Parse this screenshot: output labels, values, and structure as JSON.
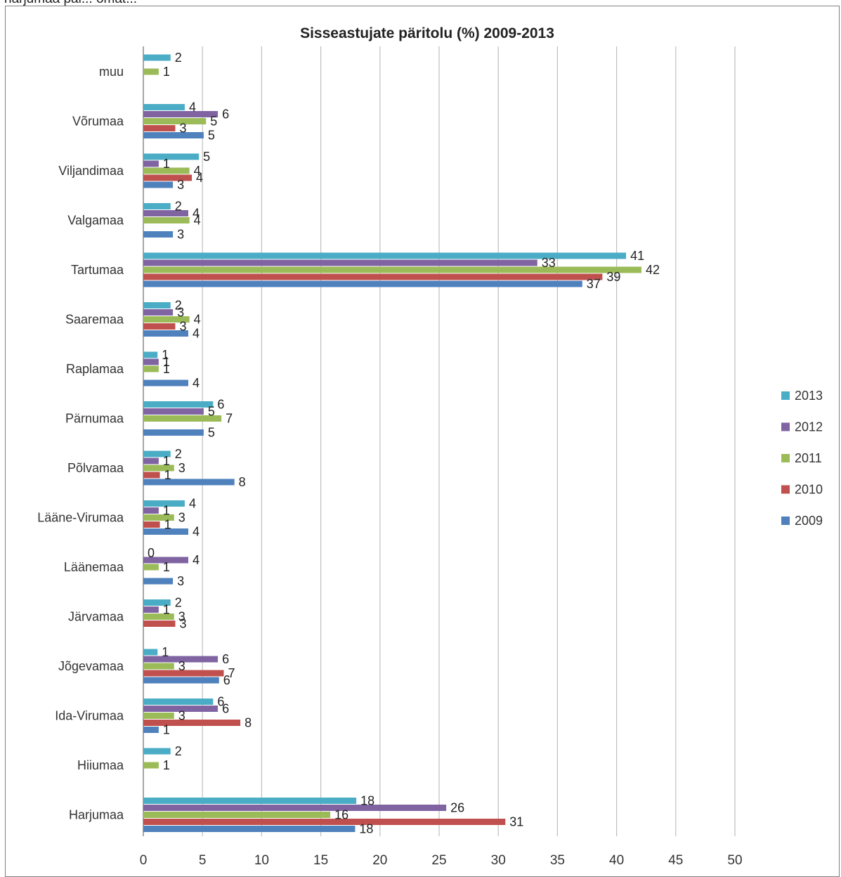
{
  "page": {
    "top_snippet": "harjumaa pal... omat..."
  },
  "chart_data": {
    "type": "bar",
    "orientation": "horizontal",
    "title": "Sisseastujate päritolu (%) 2009-2013",
    "xlim": [
      0,
      50
    ],
    "x_ticks": [
      0,
      5,
      10,
      15,
      20,
      25,
      30,
      35,
      40,
      45,
      50
    ],
    "grid": "vertical",
    "legend_position": "right",
    "categories": [
      "muu",
      "Võrumaa",
      "Viljandimaa",
      "Valgamaa",
      "Tartumaa",
      "Saaremaa",
      "Raplamaa",
      "Pärnumaa",
      "Põlvamaa",
      "Lääne-Virumaa",
      "Läänemaa",
      "Järvamaa",
      "Jõgevamaa",
      "Ida-Virumaa",
      "Hiiumaa",
      "Harjumaa"
    ],
    "series": [
      {
        "name": "2013",
        "color": "#4bacc6",
        "values": [
          2.3,
          3.5,
          4.7,
          2.3,
          40.8,
          2.3,
          1.2,
          5.9,
          2.3,
          3.5,
          0,
          2.3,
          1.2,
          5.9,
          2.3,
          18
        ],
        "labels": [
          "2",
          "4",
          "5",
          "2",
          "41",
          "2",
          "1",
          "6",
          "2",
          "4",
          "0",
          "2",
          "1",
          "6",
          "2",
          "18"
        ]
      },
      {
        "name": "2012",
        "color": "#8064a2",
        "values": [
          0,
          6.3,
          1.3,
          3.8,
          33.3,
          2.5,
          1.3,
          5.1,
          1.3,
          1.3,
          3.8,
          1.3,
          6.3,
          6.3,
          0,
          25.6
        ],
        "labels": [
          "",
          "6",
          "1",
          "4",
          "33",
          "3",
          "1",
          "5",
          "1",
          "1",
          "4",
          "1",
          "6",
          "6",
          "",
          "26"
        ]
      },
      {
        "name": "2011",
        "color": "#9bbb59",
        "values": [
          1.3,
          5.3,
          3.9,
          3.9,
          42.1,
          3.9,
          1.3,
          6.6,
          2.6,
          2.6,
          1.3,
          2.6,
          2.6,
          2.6,
          1.3,
          15.8
        ],
        "labels": [
          "1",
          "5",
          "4",
          "4",
          "42",
          "4",
          "1",
          "7",
          "3",
          "3",
          "1",
          "3",
          "3",
          "3",
          "1",
          "16"
        ]
      },
      {
        "name": "2010",
        "color": "#c0504d",
        "values": [
          0,
          2.7,
          4.1,
          0,
          38.8,
          2.7,
          0,
          0,
          1.4,
          1.4,
          0,
          2.7,
          6.8,
          8.2,
          0,
          30.6
        ],
        "labels": [
          "",
          "3",
          "4",
          "",
          "39",
          "3",
          "",
          "",
          "1",
          "1",
          "",
          "3",
          "7",
          "8",
          "",
          "31"
        ]
      },
      {
        "name": "2009",
        "color": "#4f81bd",
        "values": [
          0,
          5.1,
          2.5,
          2.5,
          37.1,
          3.8,
          3.8,
          5.1,
          7.7,
          3.8,
          2.5,
          0,
          6.4,
          1.3,
          0,
          17.9
        ],
        "labels": [
          "",
          "5",
          "3",
          "3",
          "37",
          "4",
          "4",
          "5",
          "8",
          "4",
          "3",
          "",
          "6",
          "1",
          "",
          "18"
        ]
      }
    ],
    "legend_order": [
      "2013",
      "2012",
      "2011",
      "2010",
      "2009"
    ]
  }
}
